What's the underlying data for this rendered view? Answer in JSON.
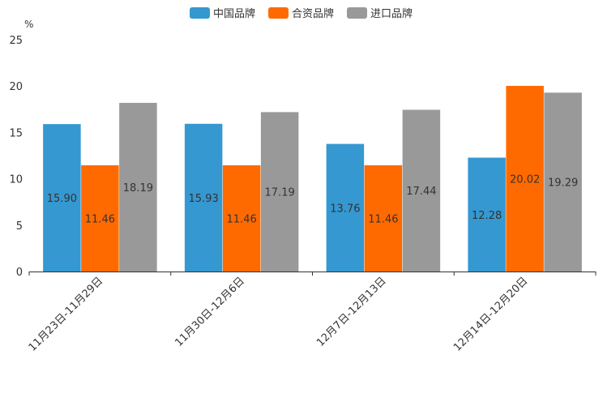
{
  "chart_data": {
    "type": "bar",
    "ylabel": "%",
    "ylim": [
      0,
      25
    ],
    "yticks": [
      "0",
      "5",
      "10",
      "15",
      "20",
      "25"
    ],
    "legend_position": "top-center",
    "categories": [
      "11月23日-11月29日",
      "11月30日-12月6日",
      "12月7日-12月13日",
      "12月14日-12月20日"
    ],
    "series": [
      {
        "name": "中国品牌",
        "color": "#3598d0",
        "values": [
          15.9,
          15.93,
          13.76,
          12.28
        ],
        "labels": [
          "15.90",
          "15.93",
          "13.76",
          "12.28"
        ]
      },
      {
        "name": "合资品牌",
        "color": "#ff6a00",
        "values": [
          11.46,
          11.46,
          11.46,
          20.02
        ],
        "labels": [
          "11.46",
          "11.46",
          "11.46",
          "20.02"
        ]
      },
      {
        "name": "进口品牌",
        "color": "#999999",
        "values": [
          18.19,
          17.19,
          17.44,
          19.29
        ],
        "labels": [
          "18.19",
          "17.19",
          "17.44",
          "19.29"
        ]
      }
    ]
  }
}
